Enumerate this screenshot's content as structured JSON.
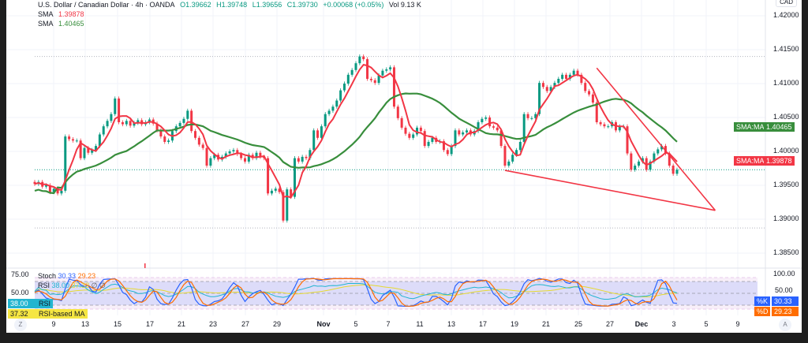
{
  "header": {
    "title": "U.S. Dollar / Canadian Dollar · 4h · OANDA",
    "open": "O1.39662",
    "high": "H1.39748",
    "low": "L1.39656",
    "close": "C1.39730",
    "change": "+0.00068 (+0.05%)",
    "volume": "Vol 9.13 K",
    "sma1_label": "SMA",
    "sma1_value": "1.39878",
    "sma2_label": "SMA",
    "sma2_value": "1.40465"
  },
  "currency_button": "CAD",
  "colors": {
    "up": "#089981",
    "down": "#f23645",
    "sma_fast": "#f23645",
    "sma_slow": "#388e3c",
    "stoch_k": "#2962ff",
    "stoch_d": "#ff6d00",
    "rsi": "#22b5d0",
    "rsi_ma": "#e6d930"
  },
  "price_badges": [
    {
      "label": "SMA:MA",
      "value": "1.40465",
      "price": 1.40465,
      "color": "#388e3c"
    },
    {
      "label": "SMA:MA",
      "value": "1.39878",
      "price": 1.39878,
      "color": "#f23645"
    }
  ],
  "oscillator": {
    "legend_stoch": "Stoch",
    "stoch_k": "30.33",
    "stoch_d": "29.23",
    "legend_rsi": "RSI",
    "rsi": "38.00",
    "rsi_ma": "37.32",
    "extra1": "∅",
    "extra2": "∅",
    "left_ticks": [
      "75.00",
      "50.00"
    ],
    "right_ticks": [
      "100.00",
      "50.00"
    ],
    "rsi_badge_value": "38.00",
    "rsi_badge_label": "RSI",
    "rsima_badge_value": "37.32",
    "rsima_badge_label": "RSI-based MA",
    "k_badge_label": "%K",
    "k_badge_value": "30.33",
    "d_badge_label": "%D",
    "d_badge_value": "29.23"
  },
  "time_axis": {
    "labels": [
      "9",
      "13",
      "15",
      "17",
      "21",
      "23",
      "27",
      "29",
      "Nov",
      "5",
      "7",
      "11",
      "13",
      "17",
      "19",
      "21",
      "25",
      "27",
      "Dec",
      "3",
      "5",
      "9"
    ],
    "zoom_button": "Z",
    "auto_button": "A"
  },
  "chart_data": {
    "type": "candlestick",
    "symbol": "USDCAD",
    "timeframe": "4h",
    "ylim": [
      1.3835,
      1.422
    ],
    "price_ticks": [
      "1.42000",
      "1.41500",
      "1.41000",
      "1.40500",
      "1.40000",
      "1.39500",
      "1.39000",
      "1.38500"
    ],
    "high_marker": 1.414,
    "low_marker": 1.3887,
    "last_price": 1.3973,
    "sma_periods": {
      "fast": 5,
      "slow": 25
    },
    "closes": [
      1.3952,
      1.3955,
      1.3948,
      1.395,
      1.394,
      1.3945,
      1.3938,
      1.3942,
      1.4022,
      1.4018,
      1.4016,
      1.4016,
      1.399,
      1.4005,
      1.3998,
      1.4002,
      1.4008,
      1.4025,
      1.4037,
      1.4045,
      1.4055,
      1.4078,
      1.4043,
      1.404,
      1.4045,
      1.4038,
      1.4042,
      1.4046,
      1.404,
      1.4043,
      1.4047,
      1.4041,
      1.4031,
      1.4022,
      1.4014,
      1.4016,
      1.403,
      1.4037,
      1.4042,
      1.4048,
      1.406,
      1.403,
      1.402,
      1.401,
      1.4005,
      1.3979,
      1.399,
      1.3995,
      1.3988,
      1.3992,
      1.3997,
      1.4,
      1.4002,
      1.3996,
      1.399,
      1.3985,
      1.3995,
      1.399,
      1.3998,
      1.3992,
      1.399,
      1.3938,
      1.3942,
      1.3945,
      1.394,
      1.3898,
      1.3944,
      1.3933,
      1.399,
      1.3985,
      1.3992,
      1.399,
      1.4002,
      1.4031,
      1.402,
      1.4037,
      1.4055,
      1.406,
      1.4066,
      1.4075,
      1.409,
      1.41,
      1.4113,
      1.412,
      1.413,
      1.414,
      1.4136,
      1.4107,
      1.4105,
      1.4101,
      1.4112,
      1.4119,
      1.4121,
      1.4124,
      1.4066,
      1.4049,
      1.4035,
      1.4026,
      1.402,
      1.4025,
      1.4035,
      1.403,
      1.4008,
      1.4014,
      1.402,
      1.4014,
      1.4015,
      1.4002,
      1.3996,
      1.4008,
      1.4031,
      1.4025,
      1.4028,
      1.4031,
      1.4025,
      1.403,
      1.4043,
      1.4048,
      1.405,
      1.4037,
      1.4035,
      1.4031,
      1.4008,
      1.3979,
      1.3985,
      1.3995,
      1.4002,
      1.4014,
      1.4055,
      1.4049,
      1.4049,
      1.4055,
      1.4101,
      1.4095,
      1.4089,
      1.4095,
      1.4101,
      1.4107,
      1.4113,
      1.4107,
      1.4113,
      1.4119,
      1.4113,
      1.4101,
      1.4089,
      1.4084,
      1.4072,
      1.4043,
      1.404,
      1.4037,
      1.4037,
      1.4043,
      1.4031,
      1.4037,
      1.4037,
      1.3997,
      1.3973,
      1.3979,
      1.3985,
      1.399,
      1.3973,
      1.3985,
      1.3997,
      1.4003,
      1.4008,
      1.3997,
      1.3979,
      1.3967,
      1.3973
    ],
    "trendlines": [
      {
        "name": "upper-trendline",
        "from_index": 147,
        "from_price": 1.4123,
        "to_index": 178,
        "to_price": 1.3913
      },
      {
        "name": "lower-trendline",
        "from_index": 123,
        "from_price": 1.3972,
        "to_index": 178,
        "to_price": 1.3913
      }
    ]
  }
}
